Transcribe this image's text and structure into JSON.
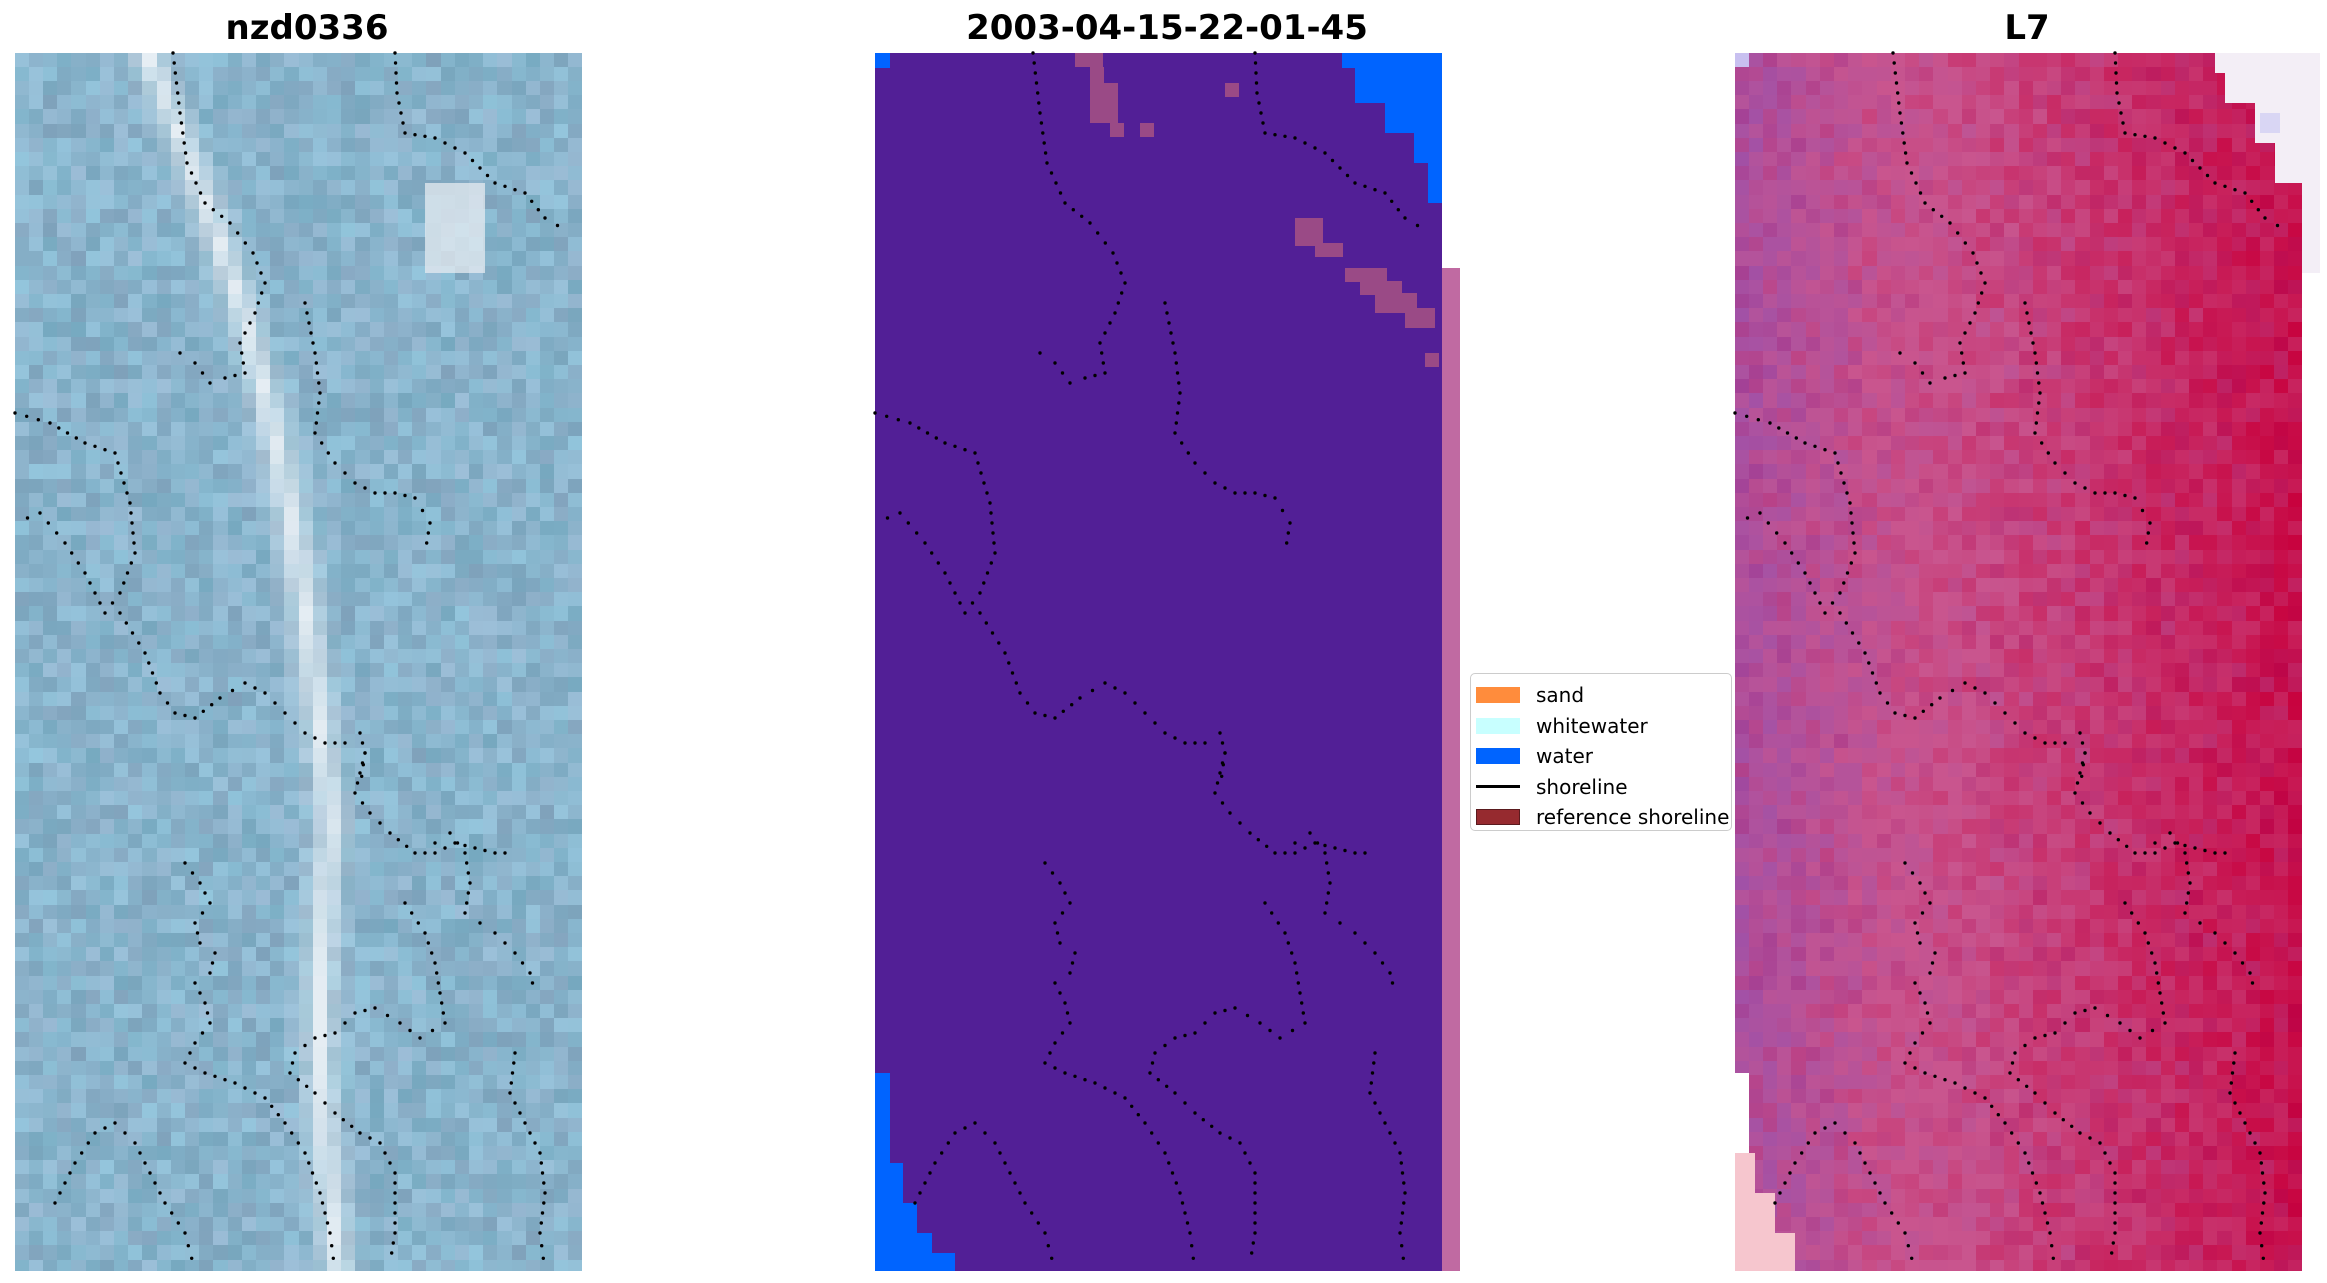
{
  "figure": {
    "panel_titles": [
      "nzd0336",
      "2003-04-15-22-01-45",
      "L7"
    ]
  },
  "legend": {
    "items": [
      {
        "label": "sand",
        "kind": "patch",
        "color": "#ff8c3c"
      },
      {
        "label": "whitewater",
        "kind": "patch",
        "color": "#c8ffff"
      },
      {
        "label": "water",
        "kind": "patch",
        "color": "#0064ff"
      },
      {
        "label": "shoreline",
        "kind": "line",
        "color": "#000000"
      },
      {
        "label": "reference shoreline",
        "kind": "patch",
        "color": "#962a2f"
      }
    ]
  },
  "colors": {
    "rgb_base": "#8ab4cc",
    "rgb_surf": "#e6eef4",
    "classification_bg": "#521f96",
    "classification_water": "#0064ff",
    "classification_ref": "#9a4a86",
    "classification_strip": "#c06aa2",
    "index_base": "#c9558e",
    "index_high": "#c8003c",
    "index_low": "#8e50b4",
    "shoreline_dots": "#000000"
  }
}
